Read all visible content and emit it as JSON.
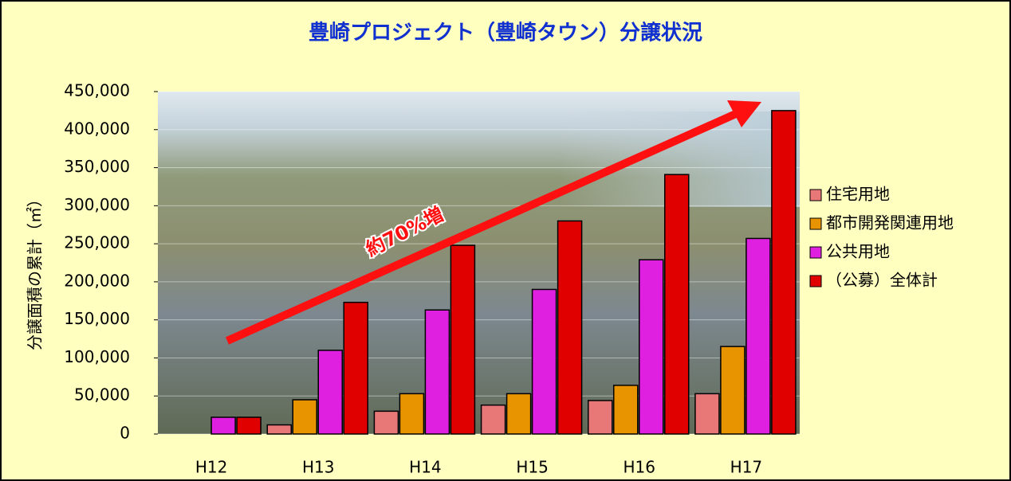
{
  "chart_data": {
    "type": "bar",
    "title": "豊崎プロジェクト（豊崎タウン）分譲状況",
    "y_label": "分譲面積の累計（㎡）",
    "annotation": "約70%増",
    "categories": [
      "H12",
      "H13",
      "H14",
      "H15",
      "H16",
      "H17"
    ],
    "series": [
      {
        "name": "住宅用地",
        "color": "#e87878",
        "values": [
          null,
          12000,
          30000,
          38000,
          44000,
          53000
        ]
      },
      {
        "name": "都市開発関連用地",
        "color": "#e89400",
        "values": [
          null,
          45000,
          53000,
          53000,
          64000,
          115000
        ]
      },
      {
        "name": "公共用地",
        "color": "#e020e0",
        "values": [
          22000,
          110000,
          163000,
          190000,
          229000,
          257000
        ]
      },
      {
        "name": "（公募）全体計",
        "color": "#e00000",
        "values": [
          22000,
          173000,
          248000,
          280000,
          341000,
          425000
        ]
      }
    ],
    "ylim": [
      0,
      450000
    ],
    "yticks": [
      0,
      {
        "value": 50000,
        "label": "50,000"
      },
      {
        "value": 100000,
        "label": "100,000"
      },
      {
        "value": 150000,
        "label": "150,000"
      },
      {
        "value": 200000,
        "label": "200,000"
      },
      {
        "value": 250000,
        "label": "250,000"
      },
      {
        "value": 300000,
        "label": "300,000"
      },
      {
        "value": 350000,
        "label": "350,000"
      },
      {
        "value": 400000,
        "label": "400,000"
      },
      {
        "value": 450000,
        "label": "450,000"
      }
    ],
    "grid": true,
    "legend": "right"
  }
}
